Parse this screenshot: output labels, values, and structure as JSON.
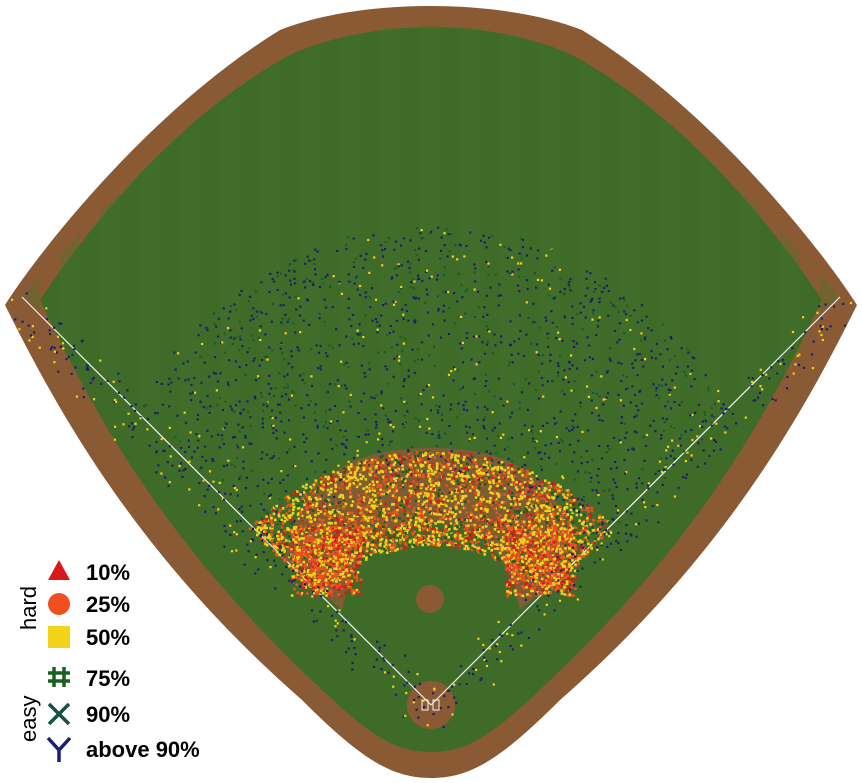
{
  "chart_data": {
    "type": "scatter",
    "title": "",
    "xlabel": "",
    "ylabel": "",
    "legend_position": "bottom-left",
    "legend_scale_labels": {
      "high": "hard",
      "low": "easy"
    },
    "series": [
      {
        "name": "10%",
        "marker": "triangle",
        "color": "#d7191c",
        "density": "infield-arc"
      },
      {
        "name": "25%",
        "marker": "circle",
        "color": "#f0501e",
        "density": "infield-arc"
      },
      {
        "name": "50%",
        "marker": "square",
        "color": "#f2d31a",
        "density": "infield-arc and outfield"
      },
      {
        "name": "75%",
        "marker": "hash",
        "color": "#1b5e20",
        "density": "throughout"
      },
      {
        "name": "90%",
        "marker": "x",
        "color": "#17504a",
        "density": "throughout"
      },
      {
        "name": "above 90%",
        "marker": "y",
        "color": "#1a1f6e",
        "density": "outfield"
      }
    ],
    "colors": {
      "grass": "#3e6b28",
      "grass_stripe": "#46752e",
      "dirt": "#8a5a34",
      "chalk": "#f2f2f2"
    }
  }
}
